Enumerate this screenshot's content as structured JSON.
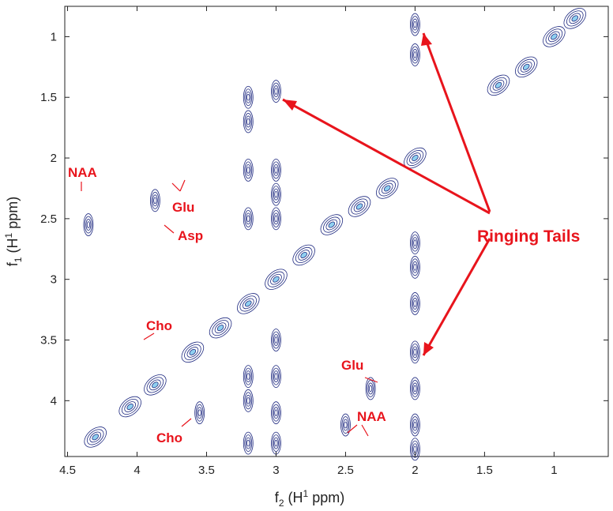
{
  "chart_data": {
    "type": "contour",
    "xlabel": [
      "f",
      "2",
      " (H",
      "1",
      " ppm)"
    ],
    "ylabel": [
      "f",
      "1",
      " (H",
      "1",
      " ppm)"
    ],
    "xlim": [
      4.52,
      0.61
    ],
    "ylim": [
      0.75,
      4.46
    ],
    "xticks": [
      4.5,
      4,
      3.5,
      3,
      2.5,
      2,
      1.5,
      1
    ],
    "yticks": [
      1,
      1.5,
      2,
      2.5,
      3,
      3.5,
      4
    ],
    "color": "#1f2a80",
    "x": [
      4.3,
      4.05,
      3.87,
      3.6,
      3.4,
      3.2,
      3.0,
      2.8,
      2.6,
      2.4,
      2.2,
      2.0,
      1.4,
      1.2,
      1.0,
      0.85,
      2.0,
      2.0,
      2.0,
      2.0,
      2.0,
      2.0,
      2.0,
      2.0,
      2.0,
      3.0,
      3.0,
      3.0,
      3.0,
      3.0,
      3.0,
      3.0,
      3.0,
      3.2,
      3.2,
      3.2,
      3.2,
      3.2,
      3.2,
      3.2,
      4.35,
      3.87,
      3.55,
      2.32,
      2.5
    ],
    "y": [
      4.3,
      4.05,
      3.87,
      3.6,
      3.4,
      3.2,
      3.0,
      2.8,
      2.55,
      2.4,
      2.25,
      2.0,
      1.4,
      1.25,
      1.0,
      0.85,
      0.9,
      1.15,
      2.7,
      2.9,
      3.2,
      3.6,
      3.9,
      4.2,
      4.4,
      1.45,
      2.1,
      2.3,
      2.5,
      3.5,
      3.8,
      4.1,
      4.35,
      1.5,
      1.7,
      2.1,
      2.5,
      3.8,
      4.0,
      4.35,
      2.55,
      2.35,
      4.1,
      3.9,
      4.2
    ],
    "annotations": [
      "NAA",
      "Glu",
      "Asp",
      "Cho",
      "Cho",
      "Glu",
      "NAA",
      "Ringing Tails"
    ]
  }
}
